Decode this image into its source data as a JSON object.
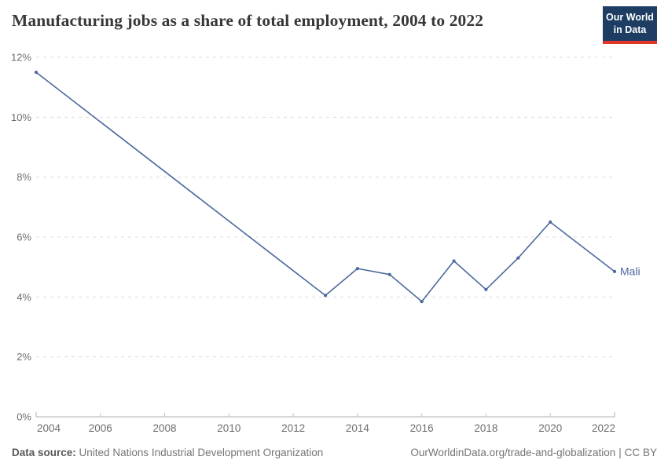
{
  "header": {
    "title": "Manufacturing jobs as a share of total employment, 2004 to 2022",
    "logo": {
      "line1": "Our World",
      "line2": "in Data"
    }
  },
  "chart_data": {
    "type": "line",
    "title": "Manufacturing jobs as a share of total employment, 2004 to 2022",
    "xlabel": "",
    "ylabel": "",
    "xlim": [
      2004,
      2022
    ],
    "ylim": [
      0,
      12
    ],
    "xticks": [
      2004,
      2006,
      2008,
      2010,
      2012,
      2014,
      2016,
      2018,
      2020,
      2022
    ],
    "yticks": [
      0,
      2,
      4,
      6,
      8,
      10,
      12
    ],
    "ytick_suffix": "%",
    "grid": "horizontal-dashed",
    "legend_position": "end-of-line-label",
    "series": [
      {
        "name": "Mali",
        "end_label": "Mali",
        "color": "#4c6a9c",
        "points": [
          [
            2004,
            11.5
          ],
          [
            2013,
            4.05
          ],
          [
            2014,
            4.95
          ],
          [
            2015,
            4.75
          ],
          [
            2016,
            3.85
          ],
          [
            2017,
            5.2
          ],
          [
            2018,
            4.25
          ],
          [
            2019,
            5.3
          ],
          [
            2020,
            6.5
          ],
          [
            2022,
            4.85
          ]
        ]
      }
    ]
  },
  "footer": {
    "datasource_label": "Data source:",
    "datasource_value": "United Nations Industrial Development Organization",
    "link": "OurWorldinData.org/trade-and-globalization",
    "separator": "|",
    "license": "CC BY"
  },
  "colors": {
    "line": "#4c6a9c",
    "grid": "#dcdcdc",
    "axis": "#b0b0b0",
    "tick": "#c4c4c4",
    "tick_label": "#6e6e6e",
    "title": "#383838",
    "logo_bg": "#1d3d63",
    "logo_accent": "#e0362c",
    "background": "#ffffff"
  }
}
